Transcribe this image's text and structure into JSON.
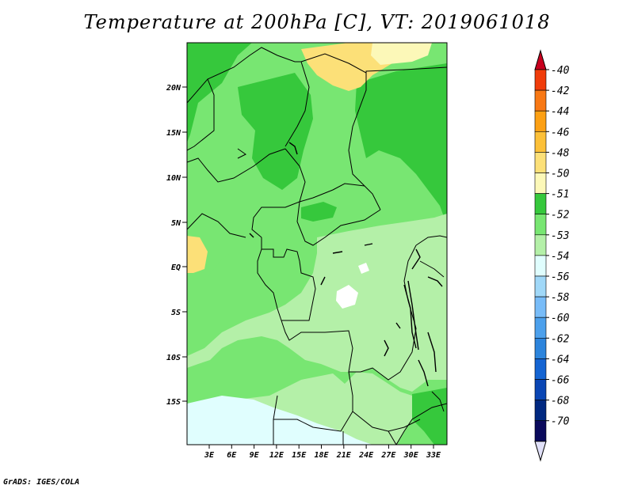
{
  "title": "Temperature at 200hPa [C], VT: 2019061018",
  "footer": "GrADS: IGES/COLA",
  "map": {
    "lat_labels": [
      "20N",
      "15N",
      "10N",
      "5N",
      "EQ",
      "5S",
      "10S",
      "15S"
    ],
    "lon_labels": [
      "3E",
      "6E",
      "9E",
      "12E",
      "15E",
      "18E",
      "21E",
      "24E",
      "27E",
      "30E",
      "33E"
    ]
  },
  "colorbar": {
    "labels": [
      "-40",
      "-42",
      "-44",
      "-46",
      "-48",
      "-50",
      "-51",
      "-52",
      "-53",
      "-54",
      "-56",
      "-58",
      "-60",
      "-62",
      "-64",
      "-66",
      "-68",
      "-70"
    ],
    "colors": [
      "#c8001e",
      "#f03c0a",
      "#f87814",
      "#fca014",
      "#fcc038",
      "#fce078",
      "#fcf8b8",
      "#36c83c",
      "#78e672",
      "#b4f0a8",
      "#e0fefe",
      "#a0d8f8",
      "#78bcf8",
      "#4ca0ec",
      "#2c84dc",
      "#1464d2",
      "#0a46b4",
      "#002880",
      "#0a0a5c",
      "#e0e0f8"
    ]
  },
  "field_colors": {
    "c51": "#fce078",
    "c50": "#fcf8b8",
    "c52": "#36c83c",
    "c53": "#78e672",
    "c54": "#b4f0a8",
    "c56": "#e0fefe",
    "c58": "#ffffff"
  }
}
